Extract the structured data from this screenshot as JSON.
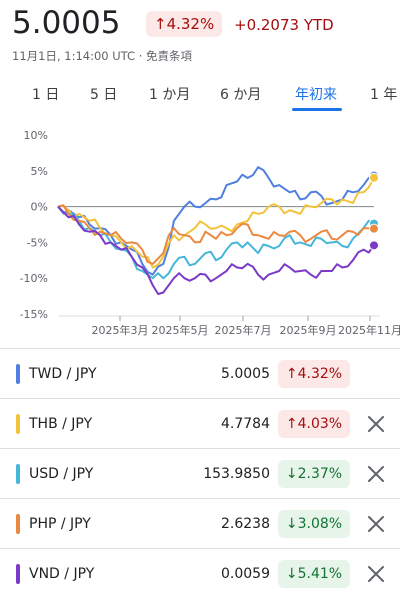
{
  "header": {
    "price": "5.0005",
    "change_pct": "↑4.32%",
    "ytd": "+0.2073 YTD",
    "subline": "11月1日, 1:14:00 UTC · 免責条項"
  },
  "tabs": [
    {
      "label": "1 日"
    },
    {
      "label": "5 日"
    },
    {
      "label": "1 か月"
    },
    {
      "label": "6 か月"
    },
    {
      "label": "年初来",
      "active": true
    },
    {
      "label": "1 年"
    }
  ],
  "chart_data": {
    "type": "line",
    "y_ticks": [
      "10%",
      "5%",
      "0%",
      "-5%",
      "-10%",
      "-15%"
    ],
    "ylim": [
      -15,
      10
    ],
    "x_ticks": [
      "2025年3月",
      "2025年5月",
      "2025年7月",
      "2025年9月",
      "2025年11月"
    ],
    "baseline": 0,
    "series": [
      {
        "name": "TWD / JPY",
        "color": "#4f7fe0",
        "values": [
          0,
          -0.5,
          -1.5,
          -2.5,
          -3,
          -4,
          -5,
          -6,
          -8,
          -9.5,
          -8,
          -2,
          0,
          0,
          0.5,
          1,
          3,
          3.5,
          4,
          5.5,
          4,
          3,
          2,
          1,
          2,
          1.5,
          0.5,
          1,
          2,
          3,
          4.32
        ]
      },
      {
        "name": "THB / JPY",
        "color": "#f2c33c",
        "values": [
          0,
          -0.5,
          -1,
          -2,
          -3,
          -4,
          -5,
          -5.5,
          -7,
          -8.5,
          -7,
          -4,
          -4,
          -3,
          -2.5,
          -3,
          -3,
          -2.5,
          -2,
          -1,
          0,
          0,
          -0.5,
          -1,
          0,
          0.5,
          1,
          1,
          0.5,
          2,
          4.03
        ]
      },
      {
        "name": "USD / JPY",
        "color": "#46b7d9",
        "values": [
          0,
          -1,
          -2,
          -3,
          -4,
          -5,
          -6,
          -7,
          -9,
          -10,
          -10,
          -8,
          -7,
          -8,
          -6.5,
          -7.5,
          -6,
          -5,
          -5,
          -6.5,
          -5.5,
          -5.5,
          -4,
          -5,
          -5.5,
          -4.5,
          -5,
          -5.5,
          -4.5,
          -3,
          -2.37
        ]
      },
      {
        "name": "PHP / JPY",
        "color": "#eb8940",
        "values": [
          0,
          -1,
          -2,
          -3,
          -3.5,
          -4,
          -4.5,
          -5,
          -6,
          -8,
          -6.5,
          -3,
          -4,
          -5,
          -3.5,
          -4.5,
          -4,
          -3,
          -2.5,
          -4,
          -4.5,
          -4,
          -3.5,
          -4,
          -4.5,
          -3.5,
          -4.5,
          -4,
          -3.5,
          -3,
          -3.08
        ]
      },
      {
        "name": "VND / JPY",
        "color": "#7b3ac8",
        "values": [
          0,
          -1.5,
          -2.5,
          -3.5,
          -4,
          -5,
          -6,
          -7,
          -8.5,
          -11,
          -12,
          -10,
          -10,
          -10,
          -9.5,
          -10,
          -9,
          -8.5,
          -8,
          -9.5,
          -9.5,
          -9,
          -8.5,
          -9,
          -9.5,
          -9,
          -9,
          -8.5,
          -7.5,
          -6,
          -5.41
        ]
      }
    ]
  },
  "rows": [
    {
      "pair": "TWD / JPY",
      "value": "5.0005",
      "pct": "↑4.32%",
      "dir": "up",
      "color": "#4f7fe0",
      "removable": false
    },
    {
      "pair": "THB / JPY",
      "value": "4.7784",
      "pct": "↑4.03%",
      "dir": "up",
      "color": "#f2c33c",
      "removable": true
    },
    {
      "pair": "USD / JPY",
      "value": "153.9850",
      "pct": "↓2.37%",
      "dir": "down",
      "color": "#46b7d9",
      "removable": true
    },
    {
      "pair": "PHP / JPY",
      "value": "2.6238",
      "pct": "↓3.08%",
      "dir": "down",
      "color": "#eb8940",
      "removable": true
    },
    {
      "pair": "VND / JPY",
      "value": "0.0059",
      "pct": "↓5.41%",
      "dir": "down",
      "color": "#7b3ac8",
      "removable": true
    }
  ],
  "icons": {
    "remove": "close-icon"
  }
}
